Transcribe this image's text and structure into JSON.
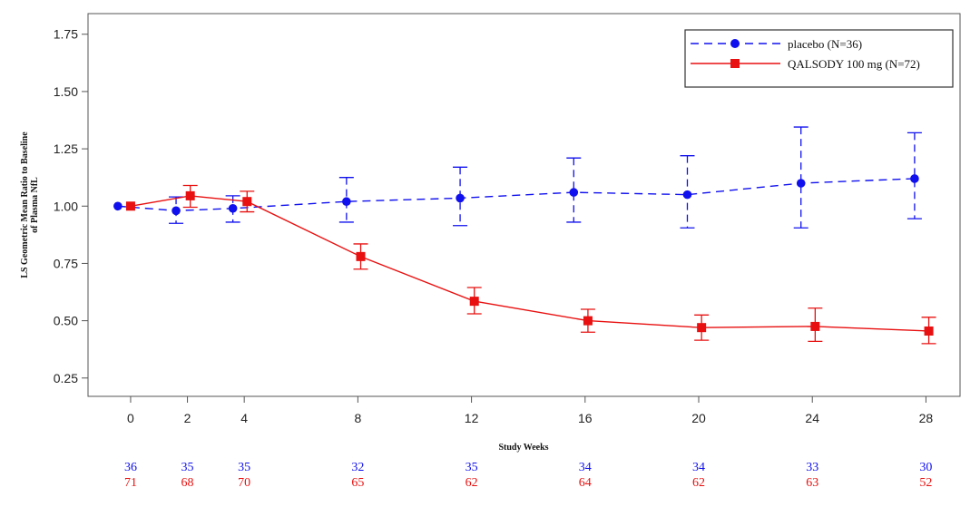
{
  "chart_data": {
    "type": "line",
    "title": "",
    "xlabel": "Study Weeks",
    "ylabel": "LS Geometric Mean Ratio to Baseline of Plasma NfL",
    "ylabel_lines": [
      "LS Geometric Mean Ratio to Baseline",
      "of Plasma NfL"
    ],
    "xlim": [
      -1.5,
      29.2
    ],
    "ylim": [
      0.17,
      1.84
    ],
    "xticks": [
      0,
      2,
      4,
      8,
      12,
      16,
      20,
      24,
      28
    ],
    "xtick_labels": [
      "0",
      "2",
      "4",
      "8",
      "12",
      "16",
      "20",
      "24",
      "28"
    ],
    "yticks": [
      0.25,
      0.5,
      0.75,
      1.0,
      1.25,
      1.5,
      1.75
    ],
    "ytick_labels": [
      "0.25",
      "0.50",
      "0.75",
      "1.00",
      "1.25",
      "1.50",
      "1.75"
    ],
    "grid": false,
    "legend_position": "top-right",
    "series": [
      {
        "name": "placebo (N=36)",
        "color": "#1010ee",
        "line_style": "dashed",
        "marker": "circle",
        "x": [
          0,
          2,
          4,
          8,
          12,
          16,
          20,
          24,
          28
        ],
        "x_plot": [
          -0.45,
          1.6,
          3.6,
          7.6,
          11.6,
          15.6,
          19.6,
          23.6,
          27.6
        ],
        "values": [
          1.0,
          0.98,
          0.99,
          1.02,
          1.035,
          1.06,
          1.05,
          1.1,
          1.12
        ],
        "lower": [
          1.0,
          0.925,
          0.93,
          0.93,
          0.915,
          0.93,
          0.905,
          0.905,
          0.945
        ],
        "upper": [
          1.0,
          1.04,
          1.045,
          1.125,
          1.17,
          1.21,
          1.22,
          1.345,
          1.32
        ],
        "counts": [
          "36",
          "35",
          "35",
          "32",
          "35",
          "34",
          "34",
          "33",
          "30"
        ]
      },
      {
        "name": "QALSODY 100 mg (N=72)",
        "color": "#e81010",
        "line_style": "solid",
        "marker": "square",
        "x": [
          0,
          2,
          4,
          8,
          12,
          16,
          20,
          24,
          28
        ],
        "x_plot": [
          0.0,
          2.1,
          4.1,
          8.1,
          12.1,
          16.1,
          20.1,
          24.1,
          28.1
        ],
        "values": [
          1.0,
          1.045,
          1.02,
          0.78,
          0.585,
          0.5,
          0.47,
          0.475,
          0.455
        ],
        "lower": [
          1.0,
          0.995,
          0.975,
          0.725,
          0.53,
          0.45,
          0.415,
          0.41,
          0.4
        ],
        "upper": [
          1.0,
          1.09,
          1.065,
          0.835,
          0.645,
          0.55,
          0.525,
          0.555,
          0.515
        ],
        "counts": [
          "71",
          "68",
          "70",
          "65",
          "62",
          "64",
          "62",
          "63",
          "52"
        ]
      }
    ]
  }
}
